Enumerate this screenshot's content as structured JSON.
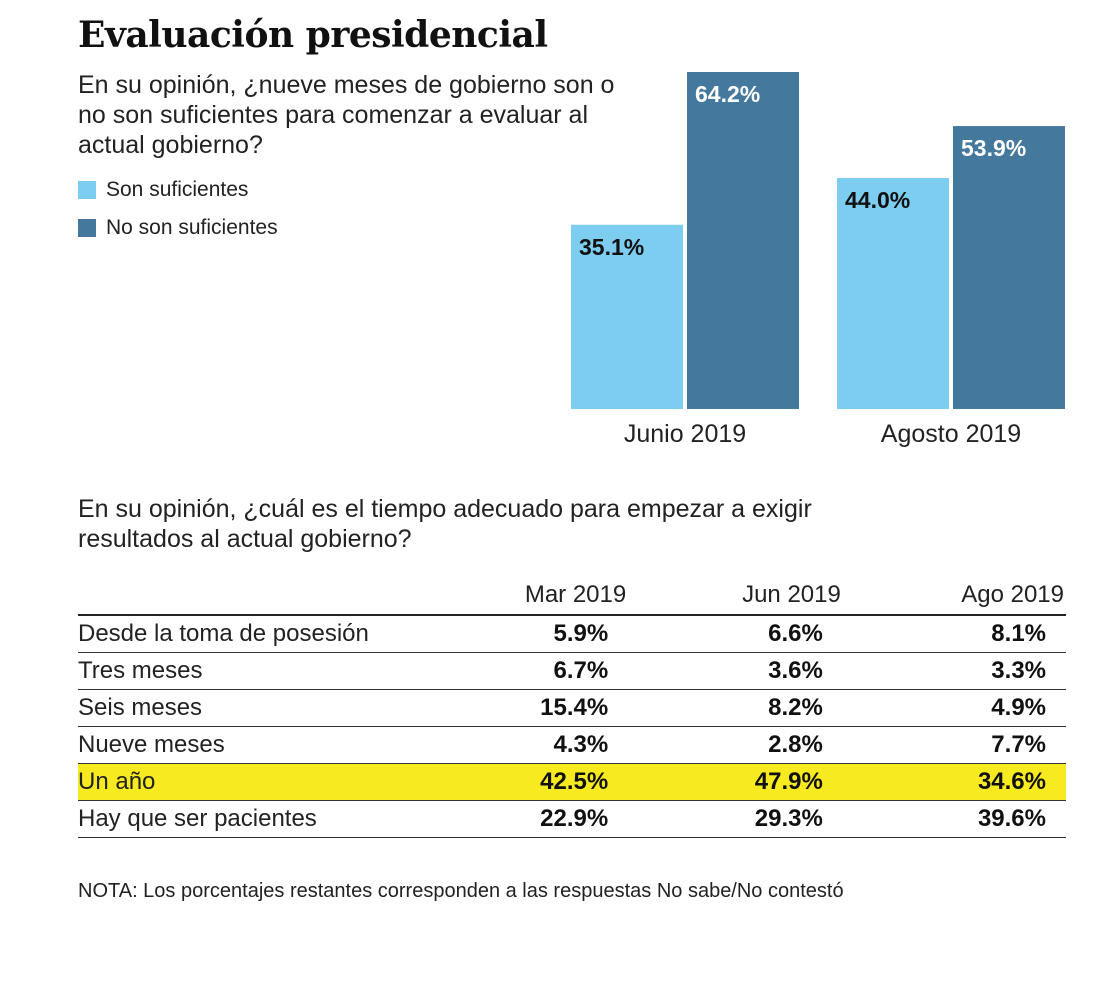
{
  "title": "Evaluación presidencial",
  "question1": "En su opinión, ¿nueve meses de gobierno son o no son suficientes para comenzar a evaluar al actual gobierno?",
  "colors": {
    "light": "#7dcdf1",
    "dark": "#44789d",
    "highlight": "#f7ea1f"
  },
  "chart_data": {
    "type": "bar",
    "categories": [
      "Junio 2019",
      "Agosto 2019"
    ],
    "series": [
      {
        "name": "Son suficientes",
        "values": [
          35.1,
          44.0
        ],
        "labels": [
          "35.1%",
          "44.0%"
        ],
        "color": "#7dcdf1"
      },
      {
        "name": "No son suficientes",
        "values": [
          64.2,
          53.9
        ],
        "labels": [
          "64.2%",
          "53.9%"
        ],
        "color": "#44789d"
      }
    ],
    "ylim": [
      0,
      64.2
    ],
    "grid": false,
    "legend": "top-left"
  },
  "question2": "En su opinión, ¿cuál es el tiempo adecuado para empezar a exigir resultados al actual gobierno?",
  "table": {
    "columns": [
      "Mar 2019",
      "Jun 2019",
      "Ago 2019"
    ],
    "rows": [
      {
        "label": "Desde la toma de posesión",
        "values": [
          "5.9%",
          "6.6%",
          "8.1%"
        ]
      },
      {
        "label": "Tres meses",
        "values": [
          "6.7%",
          "3.6%",
          "3.3%"
        ]
      },
      {
        "label": "Seis meses",
        "values": [
          "15.4%",
          "8.2%",
          "4.9%"
        ]
      },
      {
        "label": "Nueve meses",
        "values": [
          "4.3%",
          "2.8%",
          "7.7%"
        ]
      },
      {
        "label": "Un año",
        "values": [
          "42.5%",
          "47.9%",
          "34.6%"
        ]
      },
      {
        "label": "Hay que ser pacientes",
        "values": [
          "22.9%",
          "29.3%",
          "39.6%"
        ]
      }
    ]
  },
  "note": "NOTA: Los porcentajes restantes corresponden a las respuestas No sabe/No contestó"
}
